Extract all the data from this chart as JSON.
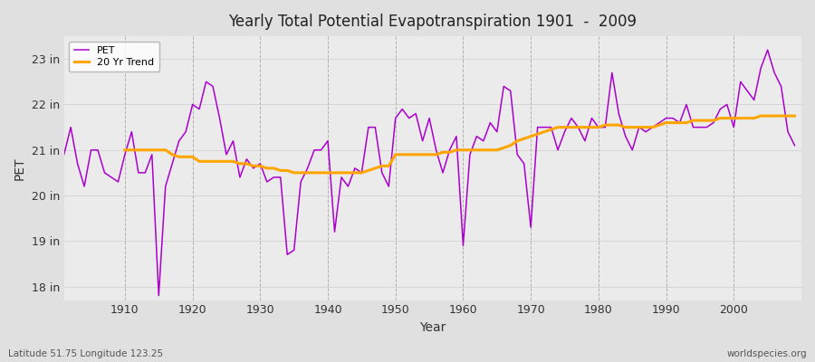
{
  "title": "Yearly Total Potential Evapotranspiration 1901  -  2009",
  "xlabel": "Year",
  "ylabel": "PET",
  "subtitle_left": "Latitude 51.75 Longitude 123.25",
  "subtitle_right": "worldspecies.org",
  "pet_color": "#aa00cc",
  "trend_color": "#ffa500",
  "bg_color": "#e0e0e0",
  "plot_bg_color": "#ebebeb",
  "ylim": [
    17.7,
    23.5
  ],
  "yticks": [
    18,
    19,
    20,
    21,
    22,
    23
  ],
  "ytick_labels": [
    "18 in",
    "19 in",
    "20 in",
    "21 in",
    "22 in",
    "23 in"
  ],
  "years": [
    1901,
    1902,
    1903,
    1904,
    1905,
    1906,
    1907,
    1908,
    1909,
    1910,
    1911,
    1912,
    1913,
    1914,
    1915,
    1916,
    1917,
    1918,
    1919,
    1920,
    1921,
    1922,
    1923,
    1924,
    1925,
    1926,
    1927,
    1928,
    1929,
    1930,
    1931,
    1932,
    1933,
    1934,
    1935,
    1936,
    1937,
    1938,
    1939,
    1940,
    1941,
    1942,
    1943,
    1944,
    1945,
    1946,
    1947,
    1948,
    1949,
    1950,
    1951,
    1952,
    1953,
    1954,
    1955,
    1956,
    1957,
    1958,
    1959,
    1960,
    1961,
    1962,
    1963,
    1964,
    1965,
    1966,
    1967,
    1968,
    1969,
    1970,
    1971,
    1972,
    1973,
    1974,
    1975,
    1976,
    1977,
    1978,
    1979,
    1980,
    1981,
    1982,
    1983,
    1984,
    1985,
    1986,
    1987,
    1988,
    1989,
    1990,
    1991,
    1992,
    1993,
    1994,
    1995,
    1996,
    1997,
    1998,
    1999,
    2000,
    2001,
    2002,
    2003,
    2004,
    2005,
    2006,
    2007,
    2008,
    2009
  ],
  "pet_values": [
    20.9,
    21.5,
    20.7,
    20.2,
    21.0,
    21.0,
    20.5,
    20.4,
    20.3,
    20.9,
    21.4,
    20.5,
    20.5,
    20.9,
    17.8,
    20.2,
    20.7,
    21.2,
    21.4,
    22.0,
    21.9,
    22.5,
    22.4,
    21.7,
    20.9,
    21.2,
    20.4,
    20.8,
    20.6,
    20.7,
    20.3,
    20.4,
    20.4,
    18.7,
    18.8,
    20.3,
    20.6,
    21.0,
    21.0,
    21.2,
    19.2,
    20.4,
    20.2,
    20.6,
    20.5,
    21.5,
    21.5,
    20.5,
    20.2,
    21.7,
    21.9,
    21.7,
    21.8,
    21.2,
    21.7,
    21.0,
    20.5,
    21.0,
    21.3,
    18.9,
    20.9,
    21.3,
    21.2,
    21.6,
    21.4,
    22.4,
    22.3,
    20.9,
    20.7,
    19.3,
    21.5,
    21.5,
    21.5,
    21.0,
    21.4,
    21.7,
    21.5,
    21.2,
    21.7,
    21.5,
    21.5,
    22.7,
    21.8,
    21.3,
    21.0,
    21.5,
    21.4,
    21.5,
    21.6,
    21.7,
    21.7,
    21.6,
    22.0,
    21.5,
    21.5,
    21.5,
    21.6,
    21.9,
    22.0,
    21.5,
    22.5,
    22.3,
    22.1,
    22.8,
    23.2,
    22.7,
    22.4,
    21.4,
    21.1
  ],
  "trend_values": [
    null,
    null,
    null,
    null,
    null,
    null,
    null,
    null,
    null,
    21.0,
    21.0,
    21.0,
    21.0,
    21.0,
    21.0,
    21.0,
    20.9,
    20.85,
    20.85,
    20.85,
    20.75,
    20.75,
    20.75,
    20.75,
    20.75,
    20.75,
    20.7,
    20.7,
    20.65,
    20.65,
    20.6,
    20.6,
    20.55,
    20.55,
    20.5,
    20.5,
    20.5,
    20.5,
    20.5,
    20.5,
    20.5,
    20.5,
    20.5,
    20.5,
    20.5,
    20.55,
    20.6,
    20.65,
    20.65,
    20.9,
    20.9,
    20.9,
    20.9,
    20.9,
    20.9,
    20.9,
    20.95,
    20.95,
    21.0,
    21.0,
    21.0,
    21.0,
    21.0,
    21.0,
    21.0,
    21.05,
    21.1,
    21.2,
    21.25,
    21.3,
    21.35,
    21.4,
    21.45,
    21.5,
    21.5,
    21.5,
    21.5,
    21.5,
    21.5,
    21.5,
    21.55,
    21.55,
    21.55,
    21.5,
    21.5,
    21.5,
    21.5,
    21.5,
    21.55,
    21.6,
    21.6,
    21.6,
    21.6,
    21.65,
    21.65,
    21.65,
    21.65,
    21.7,
    21.7,
    21.7,
    21.7,
    21.7,
    21.7,
    21.75,
    21.75,
    21.75,
    21.75,
    21.75,
    21.75
  ]
}
